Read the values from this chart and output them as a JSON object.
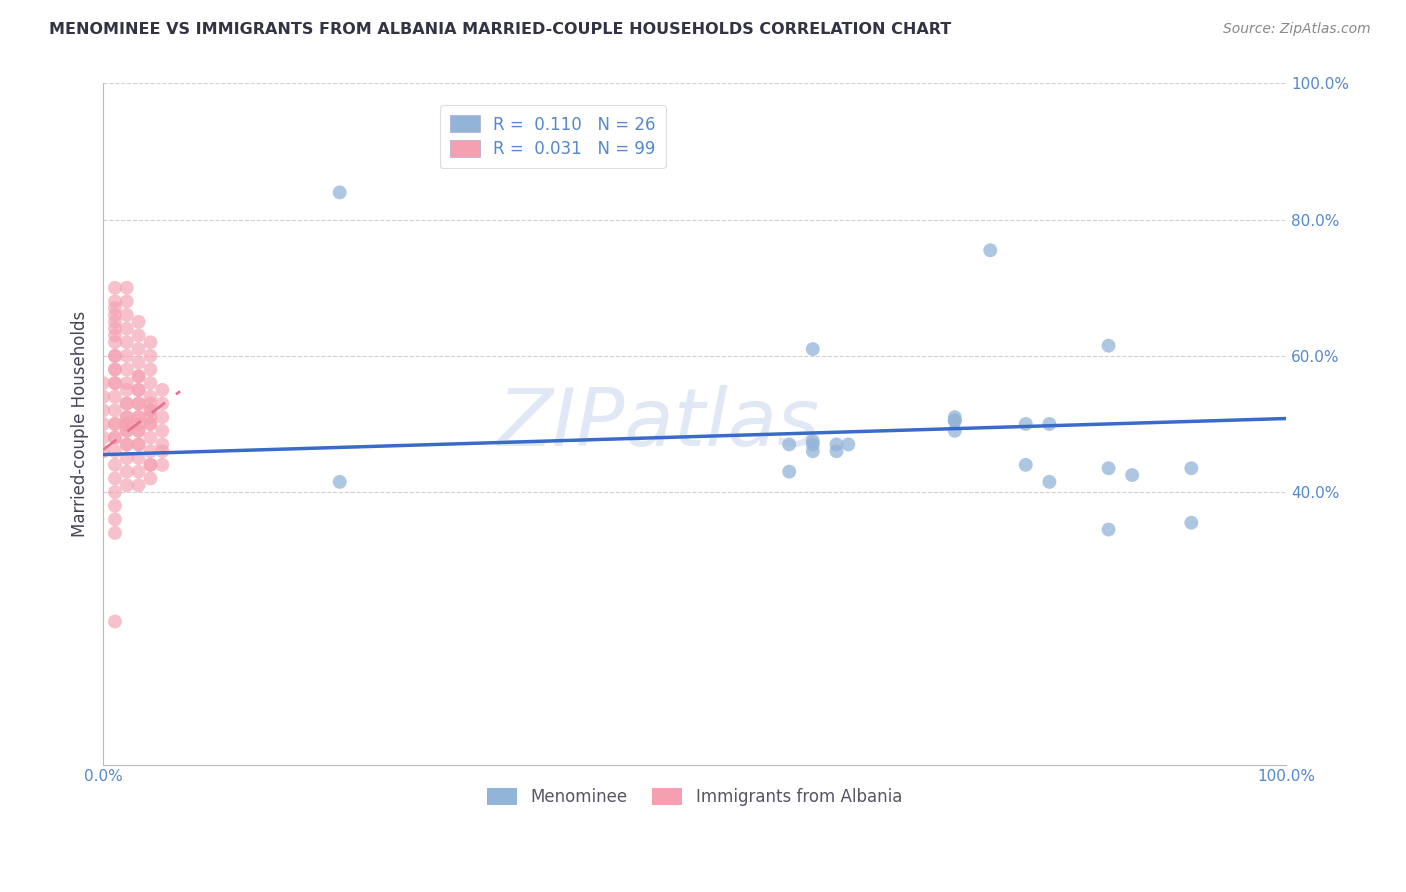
{
  "title": "MENOMINEE VS IMMIGRANTS FROM ALBANIA MARRIED-COUPLE HOUSEHOLDS CORRELATION CHART",
  "source": "Source: ZipAtlas.com",
  "ylabel": "Married-couple Households",
  "xlim": [
    0,
    1.0
  ],
  "ylim": [
    0,
    1.0
  ],
  "xticks": [
    0.0,
    0.2,
    0.4,
    0.6,
    0.8,
    1.0
  ],
  "yticks": [
    0.4,
    0.6,
    0.8,
    1.0
  ],
  "xticklabels": [
    "0.0%",
    "",
    "",
    "",
    "",
    "100.0%"
  ],
  "yticklabels": [
    "40.0%",
    "60.0%",
    "80.0%",
    "100.0%"
  ],
  "legend_r_blue": "R =  0.110",
  "legend_n_blue": "N = 26",
  "legend_r_pink": "R =  0.031",
  "legend_n_pink": "N = 99",
  "blue_color": "#92B4D8",
  "pink_color": "#F4A0B0",
  "trend_blue_color": "#3A6BC8",
  "trend_pink_color": "#E87090",
  "blue_scatter_x": [
    0.2,
    0.6,
    0.62,
    0.58,
    0.62,
    0.72,
    0.78,
    0.6,
    0.63,
    0.75,
    0.8,
    0.85,
    0.92,
    0.72,
    0.78,
    0.87,
    0.6,
    0.58,
    0.72,
    0.8,
    0.85,
    0.92,
    0.72,
    0.6,
    0.85,
    0.2
  ],
  "blue_scatter_y": [
    0.84,
    0.46,
    0.47,
    0.47,
    0.46,
    0.51,
    0.5,
    0.47,
    0.47,
    0.755,
    0.5,
    0.615,
    0.435,
    0.505,
    0.44,
    0.425,
    0.61,
    0.43,
    0.49,
    0.415,
    0.345,
    0.355,
    0.505,
    0.475,
    0.435,
    0.415
  ],
  "pink_scatter_x": [
    0.01,
    0.01,
    0.01,
    0.01,
    0.01,
    0.01,
    0.02,
    0.02,
    0.02,
    0.02,
    0.02,
    0.02,
    0.02,
    0.02,
    0.02,
    0.02,
    0.02,
    0.02,
    0.02,
    0.03,
    0.03,
    0.03,
    0.03,
    0.03,
    0.03,
    0.03,
    0.03,
    0.03,
    0.03,
    0.03,
    0.04,
    0.04,
    0.04,
    0.04,
    0.04,
    0.04,
    0.04,
    0.04,
    0.04,
    0.04,
    0.04,
    0.04,
    0.04,
    0.04,
    0.04,
    0.05,
    0.05,
    0.05,
    0.05,
    0.05,
    0.05,
    0.05,
    0.0,
    0.0,
    0.0,
    0.0,
    0.0,
    0.0,
    0.01,
    0.01,
    0.01,
    0.01,
    0.01,
    0.01,
    0.01,
    0.01,
    0.01,
    0.01,
    0.01,
    0.01,
    0.01,
    0.01,
    0.01,
    0.01,
    0.01,
    0.01,
    0.02,
    0.02,
    0.02,
    0.02,
    0.02,
    0.02,
    0.02,
    0.02,
    0.02,
    0.03,
    0.03,
    0.03,
    0.03,
    0.03,
    0.03,
    0.03,
    0.03,
    0.03,
    0.01,
    0.01,
    0.01,
    0.01,
    0.04
  ],
  "pink_scatter_y": [
    0.67,
    0.65,
    0.63,
    0.6,
    0.58,
    0.56,
    0.7,
    0.68,
    0.66,
    0.64,
    0.62,
    0.6,
    0.58,
    0.56,
    0.53,
    0.51,
    0.49,
    0.47,
    0.5,
    0.65,
    0.63,
    0.61,
    0.59,
    0.57,
    0.55,
    0.53,
    0.51,
    0.49,
    0.47,
    0.5,
    0.62,
    0.6,
    0.58,
    0.56,
    0.54,
    0.52,
    0.5,
    0.48,
    0.46,
    0.44,
    0.42,
    0.5,
    0.51,
    0.52,
    0.53,
    0.55,
    0.53,
    0.51,
    0.49,
    0.47,
    0.46,
    0.44,
    0.5,
    0.52,
    0.54,
    0.56,
    0.48,
    0.46,
    0.7,
    0.68,
    0.66,
    0.64,
    0.62,
    0.6,
    0.58,
    0.56,
    0.54,
    0.52,
    0.5,
    0.48,
    0.46,
    0.44,
    0.42,
    0.4,
    0.5,
    0.48,
    0.55,
    0.53,
    0.51,
    0.49,
    0.47,
    0.45,
    0.43,
    0.41,
    0.5,
    0.57,
    0.55,
    0.53,
    0.51,
    0.49,
    0.47,
    0.45,
    0.43,
    0.41,
    0.38,
    0.36,
    0.34,
    0.21,
    0.44
  ],
  "blue_trend_x": [
    0.0,
    1.0
  ],
  "blue_trend_y": [
    0.455,
    0.508
  ],
  "pink_trend_x": [
    0.0,
    0.065
  ],
  "pink_trend_y": [
    0.462,
    0.548
  ],
  "background_color": "#FFFFFF",
  "grid_color": "#CCCCCC",
  "axis_label_color": "#5588CC",
  "title_color": "#333344",
  "marker_size": 100,
  "watermark_color": "#B8CEE8",
  "watermark_alpha": 0.45
}
